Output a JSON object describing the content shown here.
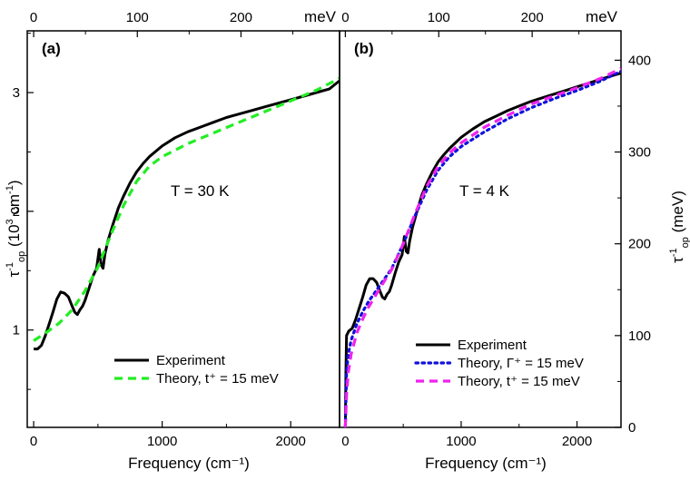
{
  "chart_data": [
    {
      "panel": "(a)",
      "type": "line",
      "annotation": "T = 30 K",
      "xlabel": "Frequency (cm⁻¹)",
      "top_axis_unit": "meV",
      "xlim": [
        -50,
        2380
      ],
      "x_ticks": [
        0,
        1000,
        2000
      ],
      "top_ticks_mev": [
        0,
        100,
        200
      ],
      "left_ylim": [
        0.18,
        3.52
      ],
      "left_y_ticks": [
        1,
        2,
        3
      ],
      "left_ylabel_parts": {
        "tau": "τ",
        "sup": "-1",
        "sub": "op",
        "rest": " (10",
        "exp": "3",
        "unit": " cm",
        "unit_sup": "-1",
        "close": ")"
      },
      "grid": false,
      "legend_placement": "bottom-center",
      "series": [
        {
          "name": "Experiment",
          "style": "solid",
          "color": "#000000",
          "x": [
            0,
            30,
            60,
            90,
            120,
            150,
            180,
            210,
            240,
            270,
            300,
            320,
            340,
            360,
            380,
            400,
            430,
            460,
            490,
            510,
            525,
            540,
            555,
            580,
            620,
            660,
            700,
            750,
            800,
            850,
            900,
            1000,
            1100,
            1200,
            1300,
            1400,
            1500,
            1600,
            1700,
            1800,
            1900,
            2000,
            2100,
            2200,
            2300,
            2380
          ],
          "y": [
            0.84,
            0.84,
            0.87,
            0.95,
            1.05,
            1.15,
            1.26,
            1.32,
            1.31,
            1.28,
            1.2,
            1.15,
            1.13,
            1.17,
            1.2,
            1.25,
            1.35,
            1.45,
            1.52,
            1.68,
            1.55,
            1.52,
            1.64,
            1.76,
            1.9,
            2.03,
            2.13,
            2.24,
            2.33,
            2.4,
            2.46,
            2.55,
            2.62,
            2.67,
            2.71,
            2.75,
            2.79,
            2.82,
            2.85,
            2.88,
            2.91,
            2.94,
            2.97,
            3.0,
            3.03,
            3.1
          ]
        },
        {
          "name": "Theory, t⁺ = 15 meV",
          "style": "dashed",
          "color": "#22ee22",
          "x": [
            0,
            100,
            200,
            300,
            400,
            500,
            600,
            700,
            800,
            900,
            1000,
            1200,
            1400,
            1600,
            1800,
            2000,
            2200,
            2380
          ],
          "y": [
            0.91,
            0.98,
            1.06,
            1.17,
            1.33,
            1.53,
            1.8,
            2.05,
            2.25,
            2.38,
            2.46,
            2.57,
            2.66,
            2.75,
            2.84,
            2.93,
            3.02,
            3.12
          ]
        }
      ]
    },
    {
      "panel": "(b)",
      "type": "line",
      "annotation": "T = 4 K",
      "xlabel": "Frequency (cm⁻¹)",
      "top_axis_unit": "meV",
      "xlim": [
        -50,
        2380
      ],
      "x_ticks": [
        0,
        1000,
        2000
      ],
      "top_ticks_mev": [
        0,
        100,
        200
      ],
      "right_ylim": [
        0,
        432
      ],
      "right_y_ticks": [
        0,
        100,
        200,
        300,
        400
      ],
      "right_ylabel_parts": {
        "tau": "τ",
        "sup": "-1",
        "sub": "op",
        "rest": " (meV)"
      },
      "grid": false,
      "legend_placement": "bottom-center",
      "series": [
        {
          "name": "Experiment",
          "style": "solid",
          "color": "#000000",
          "x": [
            0,
            5,
            10,
            30,
            60,
            90,
            120,
            150,
            180,
            210,
            240,
            270,
            300,
            320,
            340,
            360,
            380,
            400,
            430,
            460,
            490,
            510,
            525,
            540,
            555,
            580,
            620,
            660,
            700,
            750,
            800,
            850,
            900,
            1000,
            1100,
            1200,
            1300,
            1400,
            1500,
            1600,
            1700,
            1800,
            1900,
            2000,
            2100,
            2200,
            2300,
            2380
          ],
          "y": [
            0,
            60,
            100,
            105,
            108,
            118,
            130,
            142,
            155,
            162,
            162,
            158,
            148,
            142,
            140,
            145,
            148,
            155,
            168,
            180,
            188,
            208,
            192,
            190,
            203,
            218,
            236,
            253,
            265,
            278,
            289,
            297,
            304,
            316,
            325,
            333,
            339,
            345,
            350,
            355,
            359,
            363,
            367,
            371,
            375,
            379,
            383,
            386
          ]
        },
        {
          "name": "Theory, Γ⁺ = 15 meV",
          "style": "dotted",
          "color": "#1010dd",
          "x": [
            0,
            10,
            25,
            50,
            100,
            150,
            200,
            300,
            400,
            500,
            600,
            700,
            800,
            900,
            1000,
            1200,
            1400,
            1600,
            1800,
            2000,
            2200,
            2380
          ],
          "y": [
            0,
            60,
            80,
            95,
            113,
            126,
            137,
            155,
            173,
            200,
            230,
            258,
            280,
            295,
            306,
            322,
            336,
            348,
            358,
            367,
            377,
            388
          ]
        },
        {
          "name": "Theory, t⁺ = 15 meV",
          "style": "dashed",
          "color": "#ee22ee",
          "x": [
            0,
            10,
            25,
            50,
            100,
            150,
            200,
            300,
            400,
            500,
            600,
            700,
            800,
            900,
            1000,
            1200,
            1400,
            1600,
            1800,
            2000,
            2200,
            2380
          ],
          "y": [
            0,
            35,
            60,
            80,
            103,
            118,
            131,
            152,
            172,
            200,
            232,
            262,
            284,
            299,
            310,
            327,
            340,
            352,
            361,
            370,
            380,
            391
          ]
        }
      ]
    }
  ]
}
